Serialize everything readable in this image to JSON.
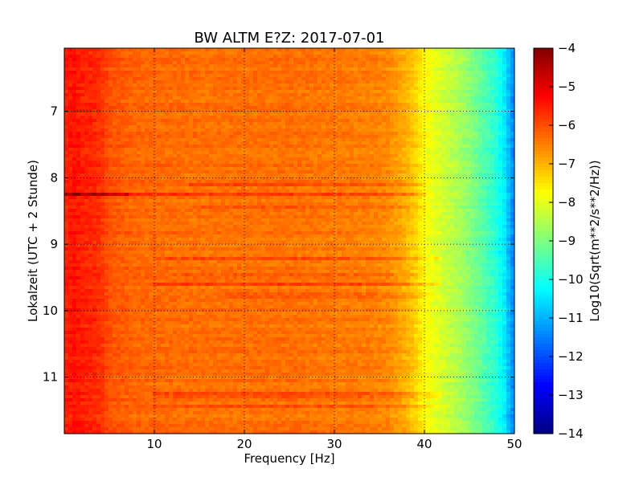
{
  "chart_data": {
    "type": "heatmap",
    "title": "BW ALTM E?Z: 2017-07-01",
    "xlabel": "Frequency [Hz]",
    "ylabel": "Lokalzeit (UTC + 2 Stunde)",
    "colorbar_label": "Log10(Sqrt(m**2/s**2/Hz))",
    "xlim": [
      0,
      50
    ],
    "ylim": [
      6.05,
      11.85
    ],
    "y_inverted": true,
    "x_ticks": [
      10,
      20,
      30,
      40,
      50
    ],
    "x_tick_labels": [
      "10",
      "20",
      "30",
      "40",
      "50"
    ],
    "y_ticks": [
      7,
      8,
      9,
      10,
      11
    ],
    "y_tick_labels": [
      "7",
      "8",
      "9",
      "10",
      "11"
    ],
    "colorbar_range": [
      -14,
      -4
    ],
    "colorbar_ticks": [
      -4,
      -5,
      -6,
      -7,
      -8,
      -9,
      -10,
      -11,
      -12,
      -13,
      -14
    ],
    "colorbar_tick_labels": [
      "−4",
      "−5",
      "−6",
      "−7",
      "−8",
      "−9",
      "−10",
      "−11",
      "−12",
      "−13",
      "−14"
    ],
    "colormap": "jet",
    "grid": true,
    "grid_style": "dotted",
    "frequency_profile": [
      {
        "f": 0.0,
        "v": -5.6
      },
      {
        "f": 1.0,
        "v": -5.4
      },
      {
        "f": 2.0,
        "v": -5.55
      },
      {
        "f": 3.0,
        "v": -5.6
      },
      {
        "f": 4.0,
        "v": -5.7
      },
      {
        "f": 5.0,
        "v": -6.05
      },
      {
        "f": 8.0,
        "v": -6.25
      },
      {
        "f": 15.0,
        "v": -6.35
      },
      {
        "f": 25.0,
        "v": -6.35
      },
      {
        "f": 34.0,
        "v": -6.5
      },
      {
        "f": 36.0,
        "v": -6.6
      },
      {
        "f": 38.0,
        "v": -7.0
      },
      {
        "f": 39.0,
        "v": -7.3
      },
      {
        "f": 40.0,
        "v": -7.75
      },
      {
        "f": 42.0,
        "v": -8.2
      },
      {
        "f": 44.0,
        "v": -8.6
      },
      {
        "f": 46.0,
        "v": -9.2
      },
      {
        "f": 48.0,
        "v": -9.9
      },
      {
        "f": 49.0,
        "v": -10.5
      },
      {
        "f": 49.5,
        "v": -11.1
      },
      {
        "f": 50.0,
        "v": -11.5
      }
    ],
    "horizontal_features": [
      {
        "t": 8.25,
        "f_start": 0,
        "f_end": 7,
        "delta": 1.2
      },
      {
        "t": 8.25,
        "f_start": 7,
        "f_end": 40,
        "delta": 0.5
      },
      {
        "t": 8.1,
        "f_start": 14,
        "f_end": 40,
        "delta": 0.35
      },
      {
        "t": 8.45,
        "f_start": 14,
        "f_end": 40,
        "delta": 0.35
      },
      {
        "t": 9.22,
        "f_start": 10,
        "f_end": 42,
        "delta": 0.45
      },
      {
        "t": 9.6,
        "f_start": 10,
        "f_end": 42,
        "delta": 0.5
      },
      {
        "t": 9.45,
        "f_start": 12,
        "f_end": 40,
        "delta": 0.25
      },
      {
        "t": 9.78,
        "f_start": 18,
        "f_end": 42,
        "delta": 0.25
      },
      {
        "t": 11.28,
        "f_start": 10,
        "f_end": 42,
        "delta": 0.35
      },
      {
        "t": 11.45,
        "f_start": 10,
        "f_end": 42,
        "delta": 0.3
      }
    ]
  }
}
